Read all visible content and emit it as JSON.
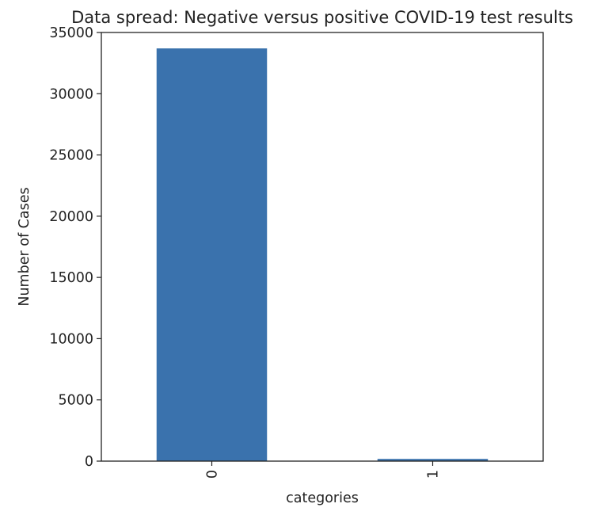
{
  "chart_data": {
    "type": "bar",
    "title": "Data spread: Negative versus positive COVID-19 test results",
    "xlabel": "categories",
    "ylabel": "Number of Cases",
    "categories": [
      "0",
      "1"
    ],
    "values": [
      33700,
      180
    ],
    "ylim": [
      0,
      35000
    ],
    "yticks": [
      0,
      5000,
      10000,
      15000,
      20000,
      25000,
      30000,
      35000
    ],
    "ytick_labels": [
      "0",
      "5000",
      "10000",
      "15000",
      "20000",
      "25000",
      "30000",
      "35000"
    ],
    "xtick_rotation": "vertical",
    "grid": false,
    "legend": "none",
    "bar_color": "#3a72ad"
  }
}
